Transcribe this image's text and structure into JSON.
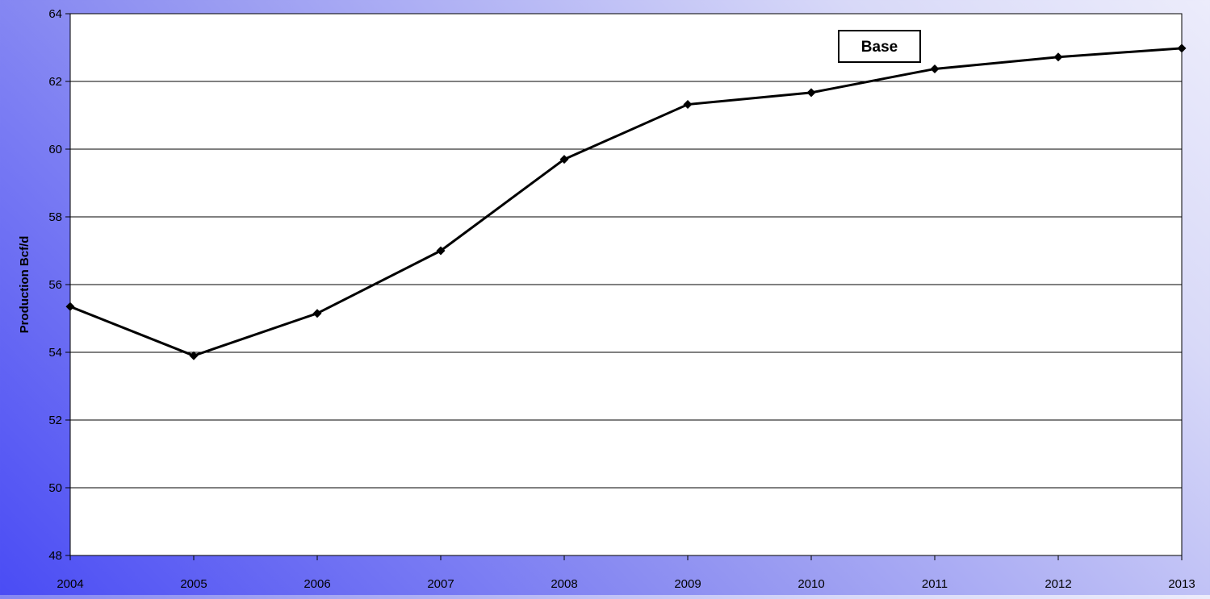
{
  "chart_data": {
    "type": "line",
    "title": "",
    "xlabel": "",
    "ylabel": "Production Bcf/d",
    "categories": [
      "2004",
      "2005",
      "2006",
      "2007",
      "2008",
      "2009",
      "2010",
      "2011",
      "2012",
      "2013"
    ],
    "series": [
      {
        "name": "Base",
        "values": [
          55.35,
          53.9,
          55.15,
          57.0,
          59.7,
          61.32,
          61.67,
          62.37,
          62.72,
          62.98
        ]
      }
    ],
    "ylim": [
      48,
      64
    ],
    "yticks": [
      48,
      50,
      52,
      54,
      56,
      58,
      60,
      62,
      64
    ],
    "grid": true,
    "legend": "top-right",
    "colors": {
      "line": "#000000",
      "plot_bg": "#ffffff",
      "grid": "#000000"
    }
  }
}
